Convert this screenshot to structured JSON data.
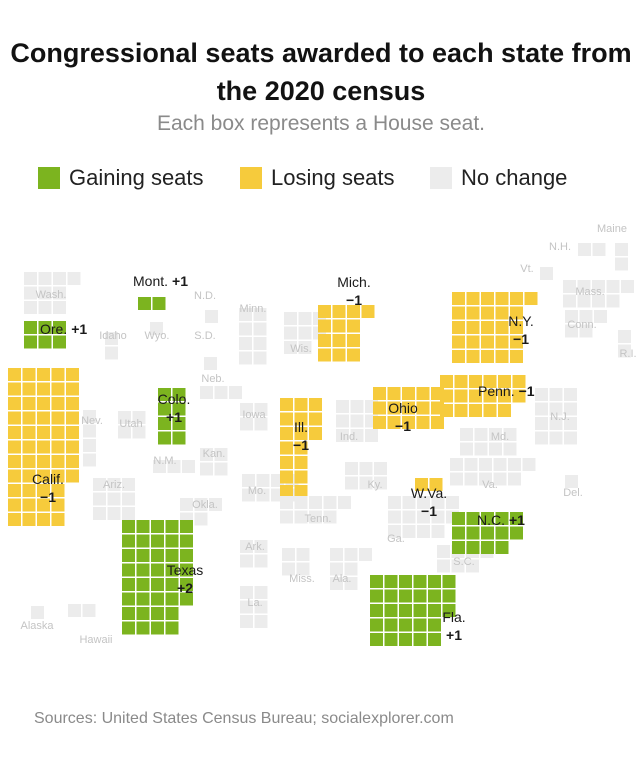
{
  "title": "Congressional seats awarded to each state from the 2020 census",
  "subtitle": "Each box represents a House seat.",
  "source": "Sources: United States Census Bureau; socialexplorer.com",
  "legend": [
    {
      "key": "gain",
      "label": "Gaining seats",
      "color": "#7cb41f"
    },
    {
      "key": "lose",
      "label": "Losing seats",
      "color": "#f6cb3c"
    },
    {
      "key": "none",
      "label": "No change",
      "color": "#ececec"
    }
  ],
  "chart_data": {
    "type": "tile-map",
    "unit": "Each box represents a House seat.",
    "states": [
      {
        "label": "Alaska",
        "seats": 1,
        "change": 0
      },
      {
        "label": "Hawaii",
        "seats": 2,
        "change": 0
      },
      {
        "label": "Wash.",
        "seats": 10,
        "change": 0
      },
      {
        "label": "Ore.",
        "seats": 6,
        "change": 1,
        "change_label": "+1"
      },
      {
        "label": "Calif.",
        "seats": 52,
        "change": -1,
        "change_label": "−1"
      },
      {
        "label": "Idaho",
        "seats": 2,
        "change": 0
      },
      {
        "label": "Nev.",
        "seats": 4,
        "change": 0
      },
      {
        "label": "Utah",
        "seats": 4,
        "change": 0
      },
      {
        "label": "Ariz.",
        "seats": 9,
        "change": 0
      },
      {
        "label": "Mont.",
        "seats": 2,
        "change": 1,
        "change_label": "+1"
      },
      {
        "label": "Wyo.",
        "seats": 1,
        "change": 0
      },
      {
        "label": "Colo.",
        "seats": 8,
        "change": 1,
        "change_label": "+1"
      },
      {
        "label": "N.M.",
        "seats": 3,
        "change": 0
      },
      {
        "label": "N.D.",
        "seats": 1,
        "change": 0
      },
      {
        "label": "S.D.",
        "seats": 1,
        "change": 0
      },
      {
        "label": "Neb.",
        "seats": 3,
        "change": 0
      },
      {
        "label": "Kan.",
        "seats": 4,
        "change": 0
      },
      {
        "label": "Okla.",
        "seats": 5,
        "change": 0
      },
      {
        "label": "Texas",
        "seats": 38,
        "change": 2,
        "change_label": "+2"
      },
      {
        "label": "Minn.",
        "seats": 8,
        "change": 0
      },
      {
        "label": "Iowa",
        "seats": 4,
        "change": 0
      },
      {
        "label": "Mo.",
        "seats": 8,
        "change": 0
      },
      {
        "label": "Ark.",
        "seats": 4,
        "change": 0
      },
      {
        "label": "La.",
        "seats": 6,
        "change": 0
      },
      {
        "label": "Wis.",
        "seats": 8,
        "change": 0
      },
      {
        "label": "Ill.",
        "seats": 17,
        "change": -1,
        "change_label": "−1"
      },
      {
        "label": "Mich.",
        "seats": 13,
        "change": -1,
        "change_label": "−1"
      },
      {
        "label": "Ind.",
        "seats": 9,
        "change": 0
      },
      {
        "label": "Ohio",
        "seats": 15,
        "change": -1,
        "change_label": "−1"
      },
      {
        "label": "Ky.",
        "seats": 6,
        "change": 0
      },
      {
        "label": "Tenn.",
        "seats": 9,
        "change": 0
      },
      {
        "label": "Miss.",
        "seats": 4,
        "change": 0
      },
      {
        "label": "Ala.",
        "seats": 7,
        "change": 0
      },
      {
        "label": "Ga.",
        "seats": 14,
        "change": 0
      },
      {
        "label": "Fla.",
        "seats": 28,
        "change": 1,
        "change_label": "+1"
      },
      {
        "label": "S.C.",
        "seats": 7,
        "change": 0
      },
      {
        "label": "N.C.",
        "seats": 14,
        "change": 1,
        "change_label": "+1"
      },
      {
        "label": "W.Va.",
        "seats": 2,
        "change": -1,
        "change_label": "−1"
      },
      {
        "label": "Va.",
        "seats": 11,
        "change": 0
      },
      {
        "label": "Md.",
        "seats": 8,
        "change": 0
      },
      {
        "label": "Del.",
        "seats": 1,
        "change": 0
      },
      {
        "label": "N.J.",
        "seats": 12,
        "change": 0
      },
      {
        "label": "Penn.",
        "seats": 17,
        "change": -1,
        "change_label": "−1"
      },
      {
        "label": "N.Y.",
        "seats": 26,
        "change": -1,
        "change_label": "−1"
      },
      {
        "label": "Conn.",
        "seats": 5,
        "change": 0
      },
      {
        "label": "R.I.",
        "seats": 2,
        "change": 0
      },
      {
        "label": "Mass.",
        "seats": 9,
        "change": 0
      },
      {
        "label": "Vt.",
        "seats": 1,
        "change": 0
      },
      {
        "label": "N.H.",
        "seats": 2,
        "change": 0
      },
      {
        "label": "Maine",
        "seats": 2,
        "change": 0
      }
    ]
  }
}
